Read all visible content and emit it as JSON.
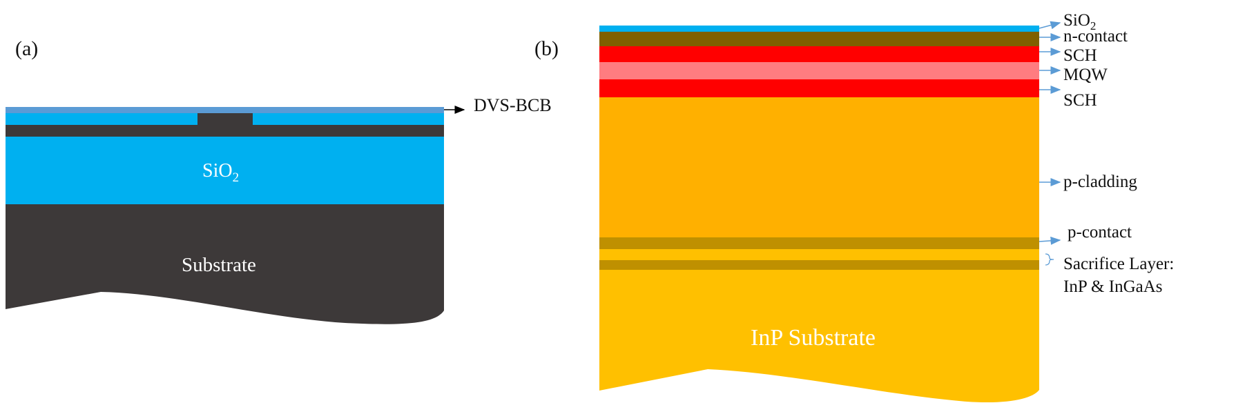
{
  "panel_a": {
    "tag": "(a)",
    "dvs_bcb_label": "DVS-BCB",
    "sio2_label": {
      "base": "SiO",
      "sub": "2"
    },
    "substrate_label": "Substrate",
    "colors": {
      "bcb": "#5B9BD5",
      "sio2": "#00B0F0",
      "silicon": "#3D3939",
      "substrate": "#3D3939",
      "arrow": "#000000"
    }
  },
  "panel_b": {
    "tag": "(b)",
    "labels": {
      "sio2": {
        "base": "SiO",
        "sub": "2"
      },
      "n_contact": "n-contact",
      "sch_top": "SCH",
      "mqw": "MQW",
      "sch_bottom": "SCH",
      "p_cladding": "p-cladding",
      "p_contact": "p-contact",
      "sacrifice_line1": "Sacrifice Layer:",
      "sacrifice_line2": "InP & InGaAs",
      "substrate": "InP Substrate"
    },
    "colors": {
      "sio2": "#00B0F0",
      "n_contact": "#7F6000",
      "sch": "#FF0000",
      "mqw": "#FF7C80",
      "p_cladding": "#FFB000",
      "p_contact": "#BF9000",
      "sacrifice_inp": "#FFC000",
      "sacrifice_ingaas": "#BF9000",
      "substrate": "#FFC000",
      "arrow": "#5B9BD5"
    }
  }
}
